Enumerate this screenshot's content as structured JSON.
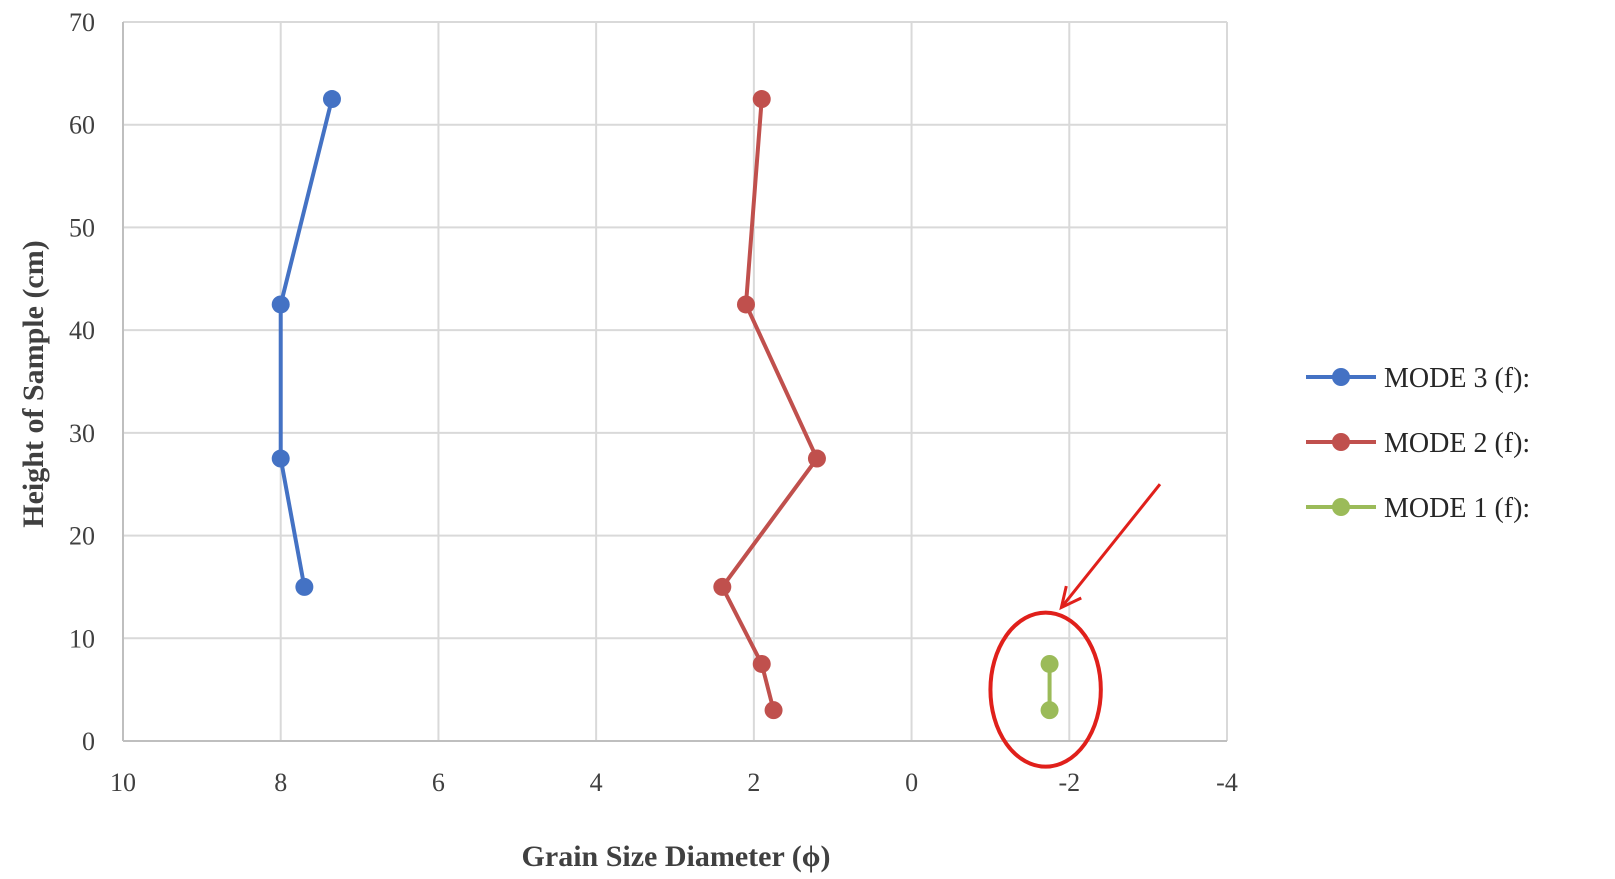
{
  "chart_data": {
    "type": "line",
    "title": "",
    "xlabel": "Grain Size Diameter (ϕ)",
    "ylabel": "Height of Sample (cm)",
    "xlim": [
      10,
      -4
    ],
    "x_reversed": true,
    "ylim": [
      0,
      70
    ],
    "xticks": [
      "10",
      "8",
      "6",
      "4",
      "2",
      "0",
      "-2",
      "-4"
    ],
    "yticks": [
      "0",
      "10",
      "20",
      "30",
      "40",
      "50",
      "60",
      "70"
    ],
    "grid": true,
    "legend_position": "right",
    "series": [
      {
        "name": "MODE 3 (f):",
        "color": "#4472c4",
        "points": [
          {
            "x": 7.35,
            "y": 62.5
          },
          {
            "x": 8.0,
            "y": 42.5
          },
          {
            "x": 8.0,
            "y": 27.5
          },
          {
            "x": 7.7,
            "y": 15.0
          }
        ]
      },
      {
        "name": "MODE 2 (f):",
        "color": "#c0504d",
        "points": [
          {
            "x": 1.9,
            "y": 62.5
          },
          {
            "x": 2.1,
            "y": 42.5
          },
          {
            "x": 1.2,
            "y": 27.5
          },
          {
            "x": 2.4,
            "y": 15.0
          },
          {
            "x": 1.9,
            "y": 7.5
          },
          {
            "x": 1.75,
            "y": 3.0
          }
        ]
      },
      {
        "name": "MODE 1 (f):",
        "color": "#9bbb59",
        "points": [
          {
            "x": -1.75,
            "y": 7.5
          },
          {
            "x": -1.75,
            "y": 3.0
          }
        ]
      }
    ],
    "annotations": [
      {
        "type": "ellipse",
        "color": "#e0201b",
        "center": {
          "x": -1.7,
          "y": 5.0
        },
        "radius_x": 0.7,
        "radius_y": 7.5
      },
      {
        "type": "arrow",
        "color": "#e0201b",
        "from": {
          "x": -3.15,
          "y": 25.0
        },
        "to": {
          "x": -1.9,
          "y": 13.0
        }
      }
    ]
  }
}
